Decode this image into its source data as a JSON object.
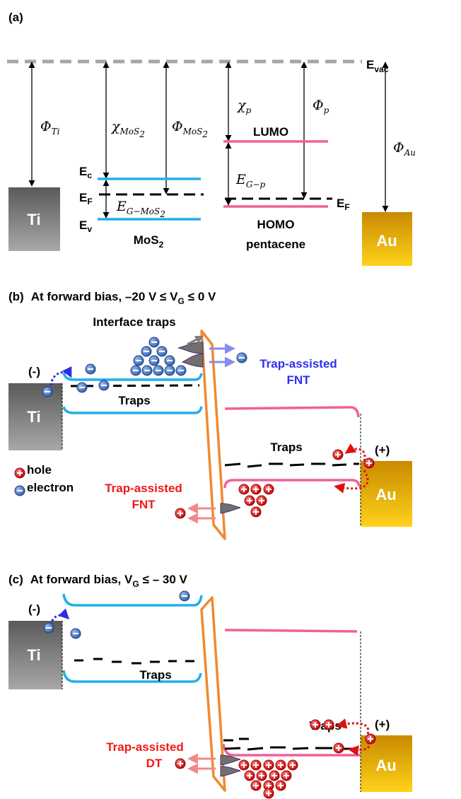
{
  "panel_a": {
    "label": "(a)",
    "e_vac": [
      "E",
      "vac"
    ],
    "phi_ti": [
      "Φ",
      "Ti"
    ],
    "chi_mos2": [
      "χ",
      "MoS",
      "2"
    ],
    "phi_mos2": [
      "Φ",
      "MoS",
      "2"
    ],
    "chi_p": [
      "χ",
      "p"
    ],
    "lumo": "LUMO",
    "phi_p": [
      "Φ",
      "p"
    ],
    "phi_au": [
      "Φ",
      "Au"
    ],
    "e_c": [
      "E",
      "c"
    ],
    "e_f_mos2": [
      "E",
      "F"
    ],
    "e_v": [
      "E",
      "v"
    ],
    "e_g_mos2": [
      "E",
      "G−MoS",
      "2"
    ],
    "e_g_p": [
      "E",
      "G−p"
    ],
    "e_f_p": [
      "E",
      "F"
    ],
    "ti": "Ti",
    "mos2": [
      "MoS",
      "2"
    ],
    "homo": "HOMO",
    "pentacene": "pentacene",
    "au": "Au"
  },
  "panel_b": {
    "label": "(b)",
    "title": [
      "At forward bias, –20 V ≤ V",
      "G",
      "≤ 0 V"
    ],
    "interface_traps": "Interface traps",
    "trap_assisted_electron": [
      "Trap-assisted",
      "FNT"
    ],
    "minus": "(-)",
    "ti": "Ti",
    "traps_mos2": "Traps",
    "traps_pentacene": "Traps",
    "plus": "(+)",
    "legend_hole": "hole",
    "legend_electron": "electron",
    "trap_assisted_hole": [
      "Trap-assisted",
      "FNT"
    ],
    "au": "Au"
  },
  "panel_c": {
    "label": "(c)",
    "title": [
      "At forward bias, V",
      "G",
      "≤ – 30 V"
    ],
    "minus": "(-)",
    "ti": "Ti",
    "traps_mos2": "Traps",
    "traps_pentacene": "Traps",
    "plus": "(+)",
    "trap_assisted_hole": [
      "Trap-assisted",
      "DT"
    ],
    "au": "Au"
  }
}
